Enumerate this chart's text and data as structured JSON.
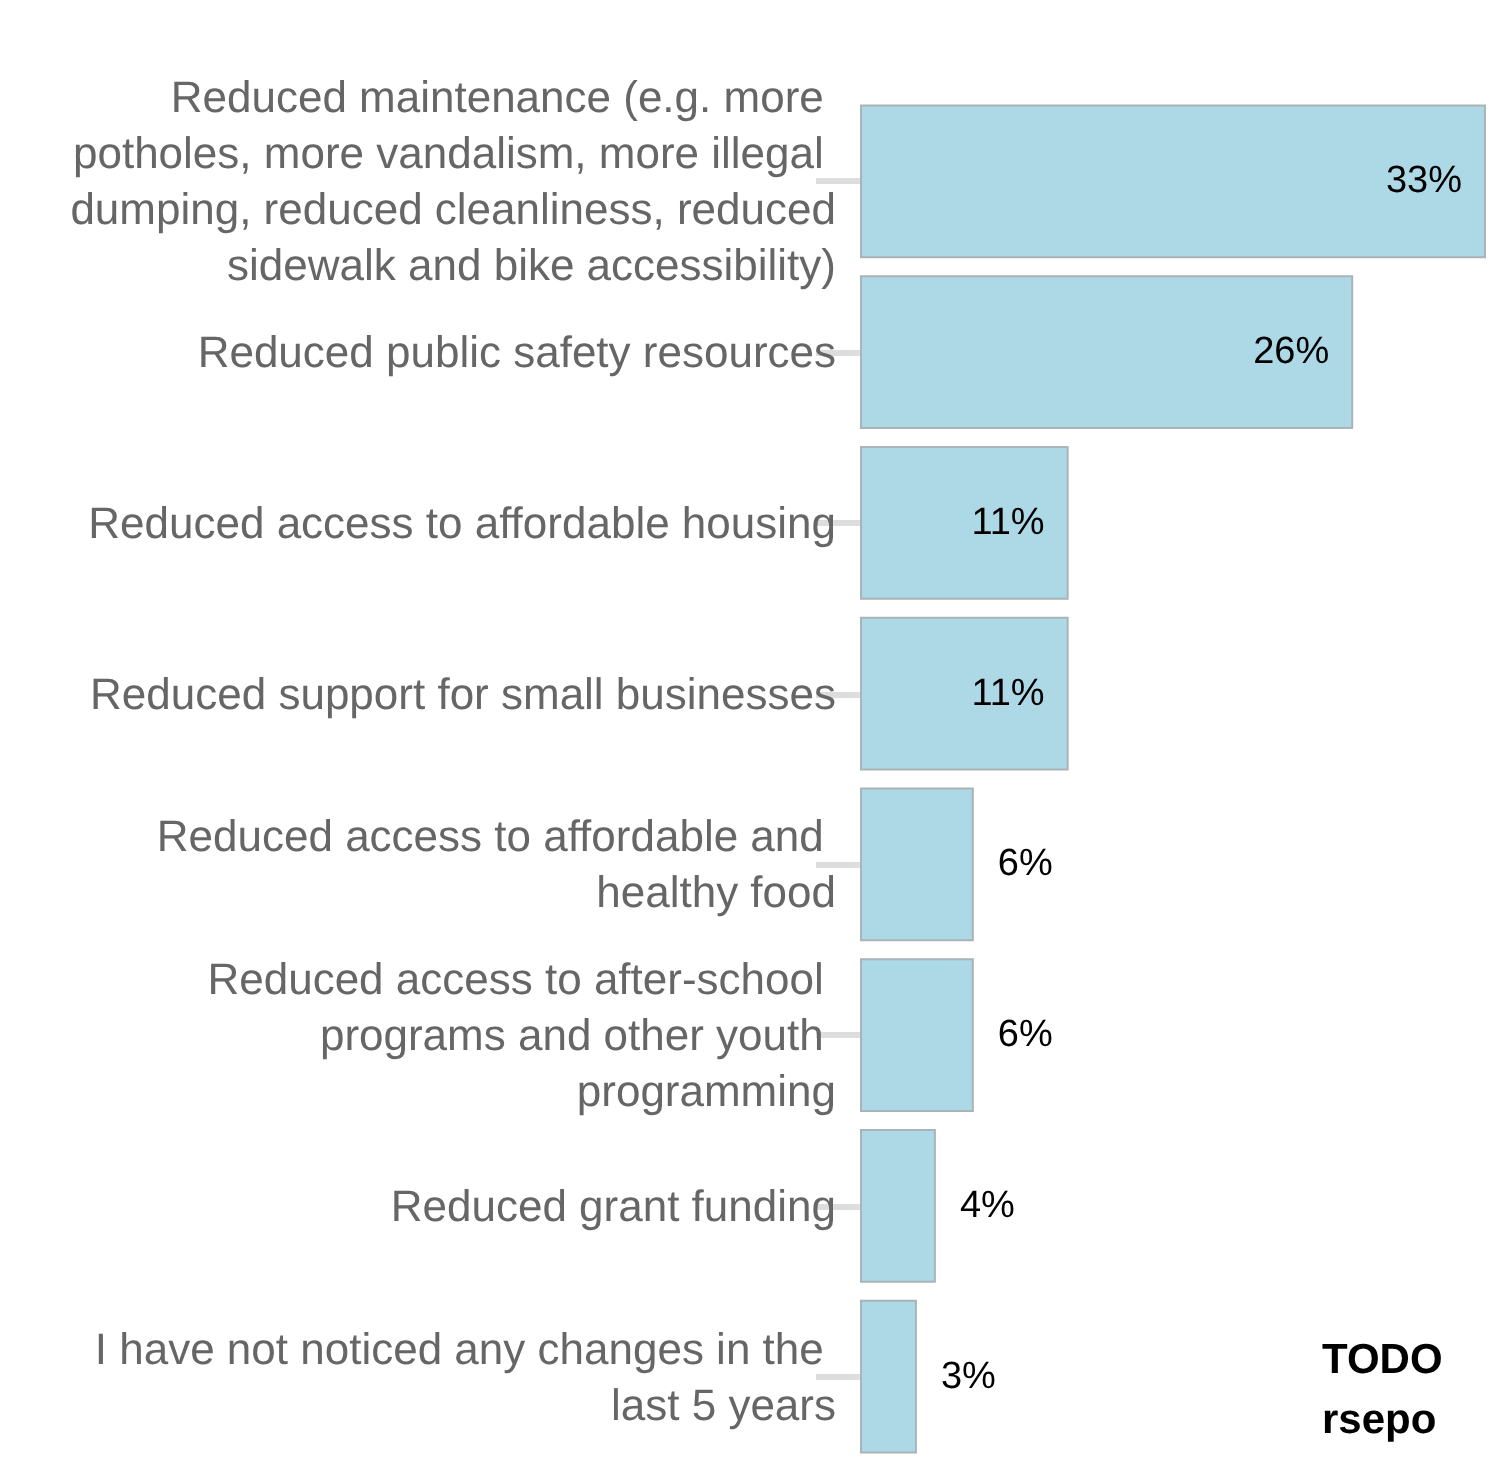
{
  "chart_data": {
    "type": "bar",
    "orientation": "horizontal",
    "categories": [
      "Reduced maintenance (e.g. more potholes, more vandalism, more illegal dumping, reduced cleanliness, reduced sidewalk and bike accessibility)",
      "Reduced public safety resources",
      "Reduced access to affordable housing",
      "Reduced support for small businesses",
      "Reduced access to affordable and healthy food",
      "Reduced access to after-school programs and other youth programming",
      "Reduced grant funding",
      "I have not noticed any changes in the last 5 years"
    ],
    "values": [
      33,
      26,
      11,
      11,
      6,
      6,
      4,
      3
    ],
    "value_labels": [
      "33%",
      "26%",
      "11%",
      "11%",
      "6%",
      "6%",
      "4%",
      "3%"
    ],
    "color": "#add8e6",
    "tick_labels": "y",
    "grid": false,
    "annotations": [
      "TODO rsepo"
    ]
  }
}
